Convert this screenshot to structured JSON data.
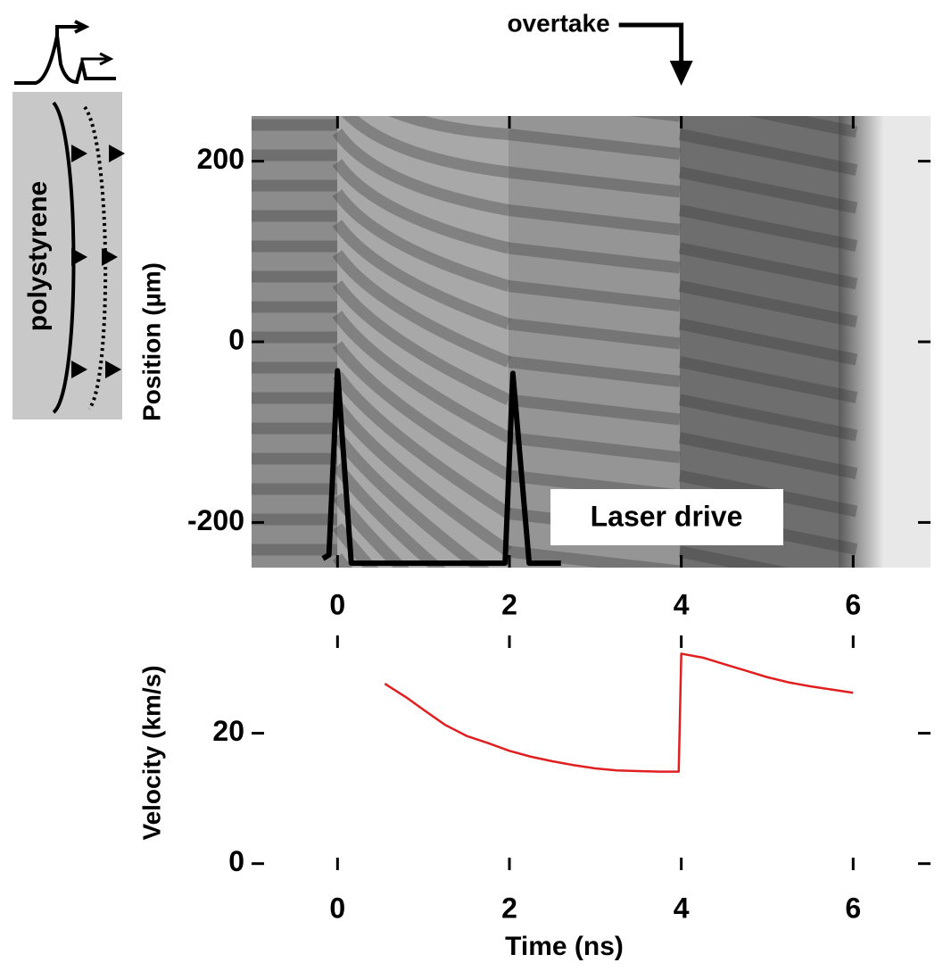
{
  "diagram": {
    "label": "polystyrene"
  },
  "chart_data": [
    {
      "type": "line",
      "ylabel": "Position (µm)",
      "xlim": [
        -1,
        6.9
      ],
      "ylim": [
        -250,
        250
      ],
      "xticks": [
        0,
        2,
        4,
        6
      ],
      "yticks": [
        200,
        0,
        -200
      ],
      "x": [
        -0.17,
        -0.1,
        0,
        0.16,
        1.95,
        2.04,
        2.23,
        2.6
      ],
      "series": [
        {
          "name": "Laser drive",
          "color": "#000000",
          "values": [
            -240,
            -236,
            -32,
            -245,
            -245,
            -35,
            -245,
            -245
          ]
        }
      ],
      "annotations": [
        {
          "text": "overtake",
          "x": 4
        }
      ]
    },
    {
      "type": "line",
      "xlabel": "Time (ns)",
      "ylabel": "Velocity (km/s)",
      "xlim": [
        -1,
        6.9
      ],
      "ylim": [
        -1,
        35
      ],
      "xticks": [
        0,
        2,
        4,
        6
      ],
      "yticks": [
        0,
        20
      ],
      "x": [
        0.55,
        0.8,
        1,
        1.25,
        1.5,
        1.75,
        2,
        2.25,
        2.5,
        2.75,
        3,
        3.25,
        3.5,
        3.75,
        3.97,
        4.0,
        4.25,
        4.5,
        4.75,
        5,
        5.25,
        5.5,
        5.75,
        6.0
      ],
      "series": [
        {
          "name": null,
          "color": "#e02020",
          "values": [
            27.6,
            25.5,
            23.6,
            21.3,
            19.6,
            18.5,
            17.3,
            16.4,
            15.7,
            15.1,
            14.6,
            14.3,
            14.2,
            14.1,
            14.1,
            32.2,
            31.6,
            30.6,
            29.6,
            28.6,
            27.8,
            27.2,
            26.7,
            26.2
          ]
        }
      ]
    }
  ]
}
